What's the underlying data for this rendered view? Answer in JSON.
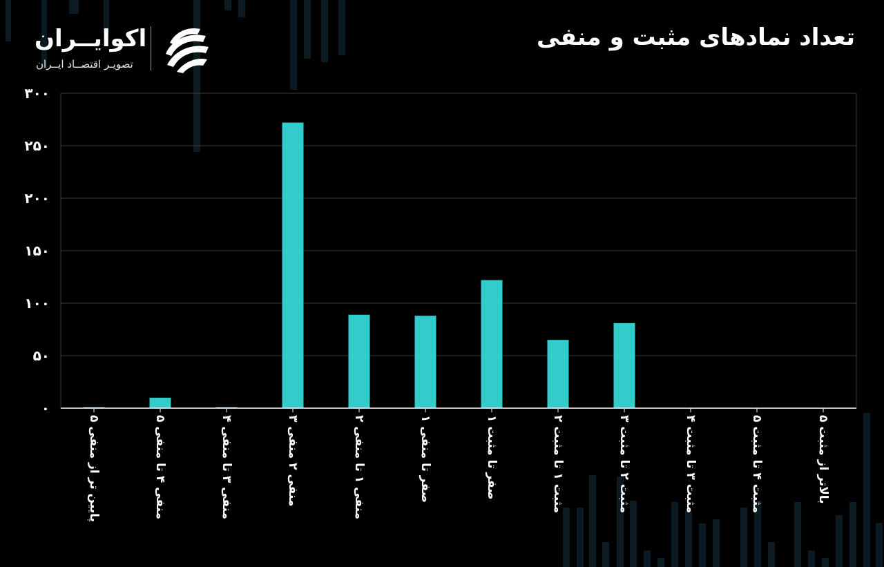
{
  "title": "تعداد نمادهای مثبت و منفی",
  "logo": {
    "name": "اکوایــران",
    "tagline": "تصویـر اقتصــاد ایــران",
    "mark_icon": "ecoiran-stripes-icon",
    "mark_color": "#ffffff"
  },
  "colors": {
    "background": "#000000",
    "bar": "#33cccc",
    "grid": "#3a3a3a",
    "text": "#ffffff",
    "decoration": "#0c1a22"
  },
  "chart_data": {
    "type": "bar",
    "title": "تعداد نمادهای مثبت و منفی",
    "xlabel": "",
    "ylabel": "",
    "ylim": [
      0,
      300
    ],
    "yticks": [
      0,
      50,
      100,
      150,
      200,
      250,
      300
    ],
    "ytick_labels": [
      "۰",
      "۵۰",
      "۱۰۰",
      "۱۵۰",
      "۲۰۰",
      "۲۵۰",
      "۳۰۰"
    ],
    "grid": true,
    "legend": "none",
    "categories": [
      "پایین تر از منفی ۵",
      "منفی ۴ تا منفی ۵",
      "منفی ۳ تا منفی ۴",
      "منفی ۲ منفی ۳",
      "منفی ۱ تا منفی ۲",
      "صفر تا منفی ۱",
      "صفر تا مثبت ۱",
      "مثبت ۱ تا مثبت ۲",
      "مثبت ۲ تا مثبت ۳",
      "مثبت ۳ تا مثبت ۴",
      "مثبت ۴ تا مثبت ۵",
      "بالاتر از مثبت ۵"
    ],
    "values": [
      1,
      10,
      1,
      272,
      89,
      88,
      122,
      65,
      81,
      0,
      0,
      0
    ]
  }
}
